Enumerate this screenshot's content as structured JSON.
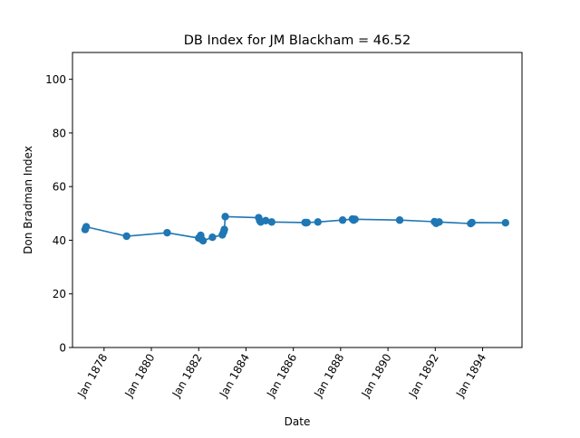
{
  "chart_data": {
    "type": "line",
    "title": "DB Index for JM Blackham = 46.52",
    "xlabel": "Date",
    "ylabel": "Don Bradman Index",
    "xlim": [
      "1876-09-01",
      "1895-09-01"
    ],
    "ylim": [
      0,
      110
    ],
    "x_ticks": [
      "1878-01-01",
      "1880-01-01",
      "1882-01-01",
      "1884-01-01",
      "1886-01-01",
      "1888-01-01",
      "1890-01-01",
      "1892-01-01",
      "1894-01-01"
    ],
    "x_tick_labels": [
      "Jan 1878",
      "Jan 1880",
      "Jan 1882",
      "Jan 1884",
      "Jan 1886",
      "Jan 1888",
      "Jan 1890",
      "Jan 1892",
      "Jan 1894"
    ],
    "y_ticks": [
      0,
      20,
      40,
      60,
      80,
      100
    ],
    "y_tick_labels": [
      "0",
      "20",
      "40",
      "60",
      "80",
      "100"
    ],
    "series": [
      {
        "color": "#1f77b4",
        "marker": "circle",
        "x": [
          "1877-03-15",
          "1877-04-01",
          "1878-12-15",
          "1880-09-01",
          "1882-01-01",
          "1882-02-01",
          "1882-02-20",
          "1882-03-10",
          "1882-08-01",
          "1883-01-01",
          "1883-01-20",
          "1883-02-01",
          "1883-02-15",
          "1884-07-15",
          "1884-08-01",
          "1884-08-15",
          "1884-11-01",
          "1885-02-01",
          "1886-07-01",
          "1886-07-15",
          "1886-08-01",
          "1887-01-15",
          "1888-02-01",
          "1888-07-01",
          "1888-07-20",
          "1888-08-10",
          "1890-07-01",
          "1891-12-20",
          "1892-01-15",
          "1892-03-01",
          "1893-07-01",
          "1893-07-20",
          "1894-12-20"
        ],
        "y": [
          44.0,
          45.0,
          41.5,
          42.8,
          40.8,
          41.8,
          40.2,
          39.8,
          41.1,
          42.0,
          43.0,
          44.0,
          48.8,
          48.4,
          47.3,
          46.8,
          47.3,
          46.8,
          46.6,
          46.5,
          46.6,
          46.8,
          47.5,
          47.9,
          47.5,
          47.8,
          47.5,
          46.9,
          46.3,
          46.8,
          46.2,
          46.6,
          46.5
        ]
      }
    ],
    "grid": false
  }
}
